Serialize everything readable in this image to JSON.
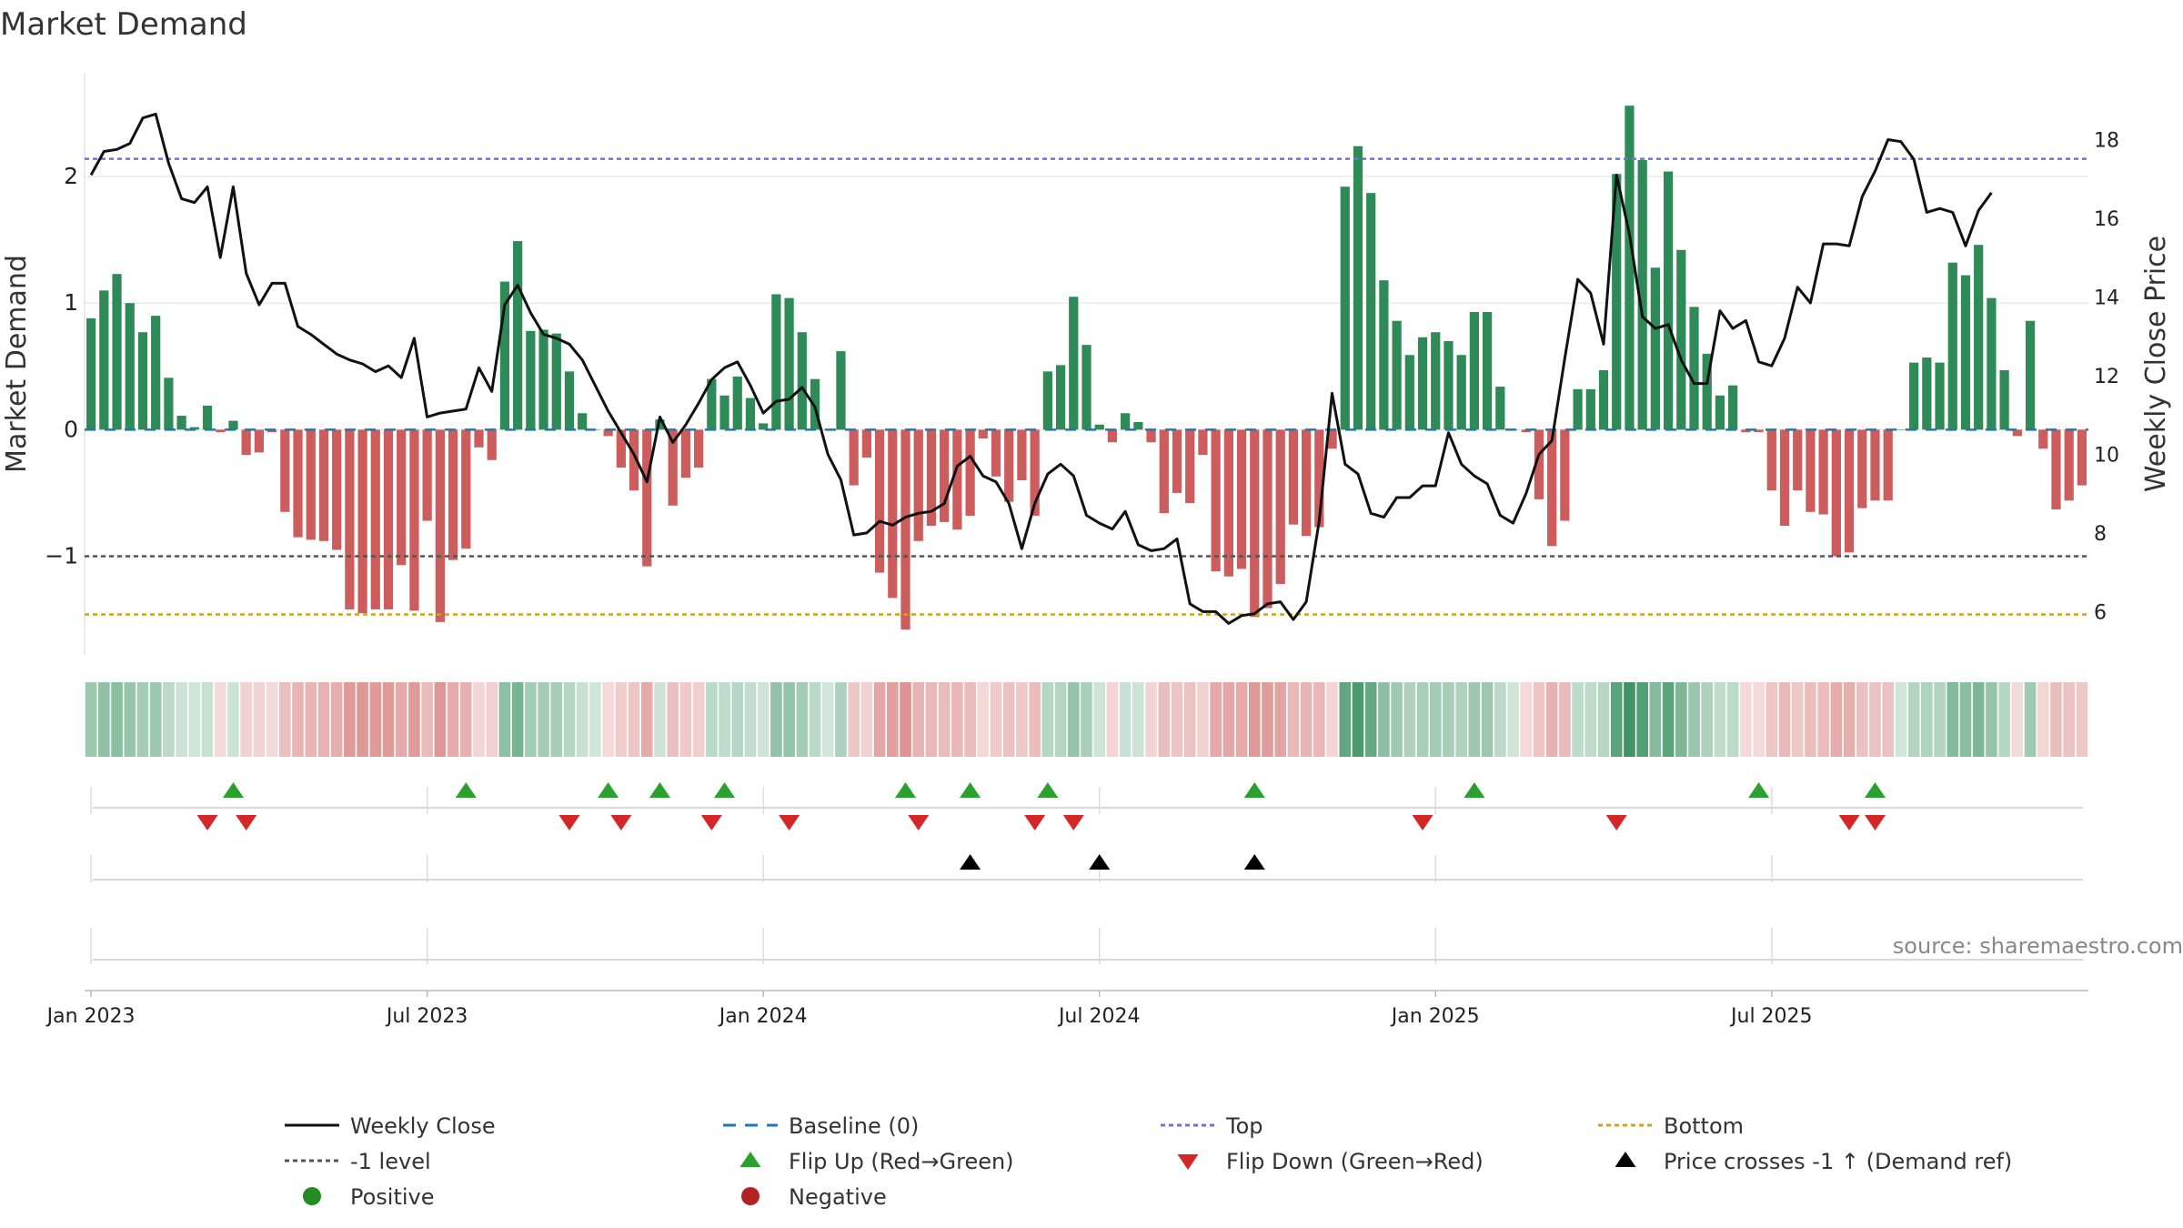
{
  "chart_data": {
    "type": "bar",
    "title": "Market Demand",
    "ylabel_left": "Market Demand",
    "ylabel_right": "Weekly Close Price",
    "ylim_left": [
      -1.78,
      2.82
    ],
    "ylim_right": [
      4.9,
      19.7
    ],
    "yticks_left": [
      {
        "value": 2,
        "label": "2"
      },
      {
        "value": 1,
        "label": "1"
      },
      {
        "value": 0,
        "label": "0"
      },
      {
        "value": -1,
        "label": "−1"
      }
    ],
    "yticks_right": [
      {
        "value": 18,
        "label": "18"
      },
      {
        "value": 16,
        "label": "16"
      },
      {
        "value": 14,
        "label": "14"
      },
      {
        "value": 12,
        "label": "12"
      },
      {
        "value": 10,
        "label": "10"
      },
      {
        "value": 8,
        "label": "8"
      },
      {
        "value": 6,
        "label": "6"
      }
    ],
    "xticks": [
      {
        "week": 1,
        "label": "Jan 2023"
      },
      {
        "week": 27,
        "label": "Jul 2023"
      },
      {
        "week": 53,
        "label": "Jan 2024"
      },
      {
        "week": 79,
        "label": "Jul 2024"
      },
      {
        "week": 105,
        "label": "Jan 2025"
      },
      {
        "week": 131,
        "label": "Jul 2025"
      }
    ],
    "levels": {
      "top": 2.14,
      "minus_one": -1.0,
      "bottom": -1.46,
      "baseline": 0
    },
    "demand": [
      0.88,
      1.1,
      1.23,
      1.0,
      0.77,
      0.9,
      0.41,
      0.11,
      0.02,
      0.19,
      -0.02,
      0.07,
      -0.2,
      -0.18,
      -0.02,
      -0.65,
      -0.85,
      -0.87,
      -0.88,
      -0.95,
      -1.42,
      -1.45,
      -1.42,
      -1.42,
      -1.07,
      -1.43,
      -0.72,
      -1.52,
      -1.03,
      -0.94,
      -0.14,
      -0.24,
      1.17,
      1.49,
      0.78,
      0.79,
      0.76,
      0.46,
      0.13,
      0.0,
      -0.05,
      -0.3,
      -0.48,
      -1.08,
      0.08,
      -0.6,
      -0.38,
      -0.3,
      0.4,
      0.27,
      0.42,
      0.25,
      0.05,
      1.07,
      1.04,
      0.77,
      0.4,
      0.0,
      0.62,
      -0.44,
      -0.22,
      -1.13,
      -1.33,
      -1.58,
      -0.88,
      -0.76,
      -0.73,
      -0.79,
      -0.68,
      -0.07,
      -0.37,
      -0.57,
      -0.4,
      -0.68,
      0.46,
      0.51,
      1.05,
      0.67,
      0.04,
      -0.1,
      0.13,
      0.06,
      -0.1,
      -0.66,
      -0.5,
      -0.58,
      -0.2,
      -1.12,
      -1.16,
      -1.1,
      -1.48,
      -1.41,
      -1.22,
      -0.75,
      -0.84,
      -0.77,
      -0.15,
      1.92,
      2.24,
      1.87,
      1.18,
      0.86,
      0.59,
      0.73,
      0.77,
      0.7,
      0.59,
      0.93,
      0.93,
      0.34,
      0.0,
      -0.02,
      -0.55,
      -0.92,
      -0.72,
      0.32,
      0.32,
      0.47,
      2.02,
      2.56,
      2.13,
      1.28,
      2.04,
      1.42,
      0.97,
      0.6,
      0.27,
      0.35,
      -0.02,
      -0.02,
      -0.48,
      -0.76,
      -0.48,
      -0.65,
      -0.67,
      -1.0,
      -0.97,
      -0.62,
      -0.56,
      -0.56,
      0.0,
      0.53,
      0.57,
      0.53,
      1.32,
      1.22,
      1.46,
      1.04,
      0.47,
      -0.05,
      0.86,
      -0.15,
      -0.63,
      -0.56,
      -0.44
    ],
    "weekly_close": [
      17.1,
      17.7,
      17.75,
      17.9,
      18.55,
      18.65,
      17.4,
      16.5,
      16.4,
      16.8,
      15.0,
      16.8,
      14.6,
      13.8,
      14.35,
      14.35,
      13.25,
      13.05,
      12.8,
      12.55,
      12.4,
      12.3,
      12.1,
      12.25,
      11.95,
      12.95,
      10.95,
      11.05,
      11.1,
      11.15,
      12.2,
      11.6,
      13.8,
      14.3,
      13.6,
      13.05,
      12.95,
      12.8,
      12.4,
      11.75,
      11.1,
      10.55,
      10.0,
      9.3,
      10.95,
      10.3,
      10.75,
      11.3,
      11.9,
      12.2,
      12.35,
      11.75,
      11.05,
      11.35,
      11.4,
      11.7,
      11.2,
      10.0,
      9.35,
      7.95,
      8.0,
      8.3,
      8.2,
      8.4,
      8.5,
      8.55,
      8.75,
      9.7,
      9.95,
      9.45,
      9.3,
      8.75,
      7.6,
      8.75,
      9.5,
      9.75,
      9.45,
      8.45,
      8.25,
      8.1,
      8.55,
      7.7,
      7.55,
      7.6,
      7.85,
      6.2,
      6.0,
      6.0,
      5.7,
      5.9,
      5.95,
      6.2,
      6.25,
      5.8,
      6.25,
      8.3,
      11.55,
      9.75,
      9.5,
      8.5,
      8.4,
      8.9,
      8.9,
      9.2,
      9.2,
      10.55,
      9.75,
      9.45,
      9.25,
      8.45,
      8.25,
      9.0,
      10.0,
      10.35,
      12.45,
      14.45,
      14.1,
      12.8,
      17.1,
      15.6,
      13.5,
      13.2,
      13.3,
      12.4,
      11.8,
      11.8,
      13.65,
      13.2,
      13.4,
      12.35,
      12.25,
      12.95,
      14.25,
      13.85,
      15.35,
      15.35,
      15.3,
      16.55,
      17.2,
      18.0,
      17.95,
      17.5,
      16.15,
      16.25,
      16.15,
      15.3,
      16.2,
      16.65
    ]
  },
  "flip_up_weeks": [
    12,
    30,
    41,
    45,
    50,
    64,
    69,
    75,
    91,
    108,
    130,
    139
  ],
  "flip_down_weeks": [
    10,
    13,
    38,
    42,
    49,
    55,
    65,
    74,
    77,
    104,
    119,
    137,
    139
  ],
  "cross_weeks": [
    69,
    79,
    91
  ],
  "source": "source: sharemaestro.com",
  "legend": [
    {
      "key": "weekly_close",
      "label": "Weekly Close"
    },
    {
      "key": "baseline",
      "label": "Baseline (0)"
    },
    {
      "key": "top",
      "label": "Top"
    },
    {
      "key": "bottom",
      "label": "Bottom"
    },
    {
      "key": "minus_one",
      "label": "-1 level"
    },
    {
      "key": "flip_up",
      "label": "Flip Up (Red→Green)"
    },
    {
      "key": "flip_down",
      "label": "Flip Down (Green→Red)"
    },
    {
      "key": "cross",
      "label": "Price crosses -1 ↑ (Demand ref)"
    },
    {
      "key": "positive",
      "label": "Positive"
    },
    {
      "key": "negative",
      "label": "Negative"
    }
  ],
  "colors": {
    "positive": "#2e8b57",
    "negative": "#cd5c5c",
    "price": "#111111",
    "top": "#7070d8",
    "bottom": "#d4a017",
    "minus_one": "#555555",
    "baseline": "#1f77b4",
    "flip_up": "#2ca02c",
    "flip_down": "#d62728",
    "cross": "#000000",
    "legend_positive": "#228b22",
    "legend_negative": "#b22222"
  }
}
